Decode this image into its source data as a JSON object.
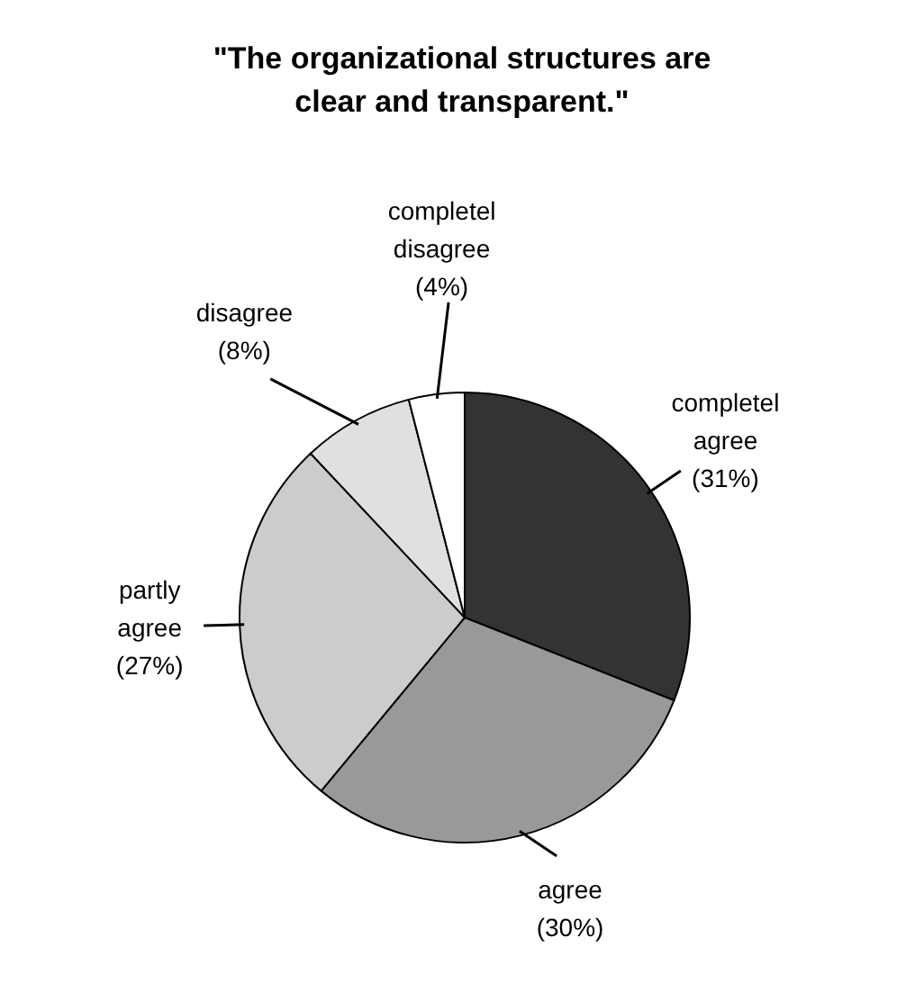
{
  "chart_data": {
    "type": "pie",
    "title": "\"The organizational structures are clear and transparent.\"",
    "categories": [
      "completel agree",
      "agree",
      "partly agree",
      "disagree",
      "completel disagree"
    ],
    "values": [
      31,
      30,
      27,
      8,
      4
    ],
    "value_labels": [
      "(31%)",
      "(30%)",
      "(27%)",
      "(8%)",
      "(4%)"
    ],
    "colors": [
      "#333333",
      "#999999",
      "#cccccc",
      "#e0e0e0",
      "#ffffff"
    ]
  }
}
